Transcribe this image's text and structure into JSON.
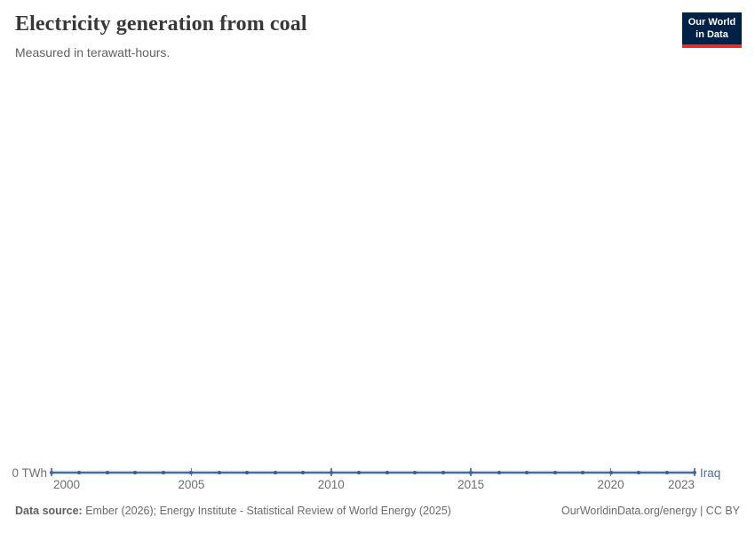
{
  "header": {
    "title": "Electricity generation from coal",
    "subtitle": "Measured in terawatt-hours.",
    "logo": {
      "line1": "Our World",
      "line2": "in Data"
    }
  },
  "chart_data": {
    "type": "line",
    "title": "Electricity generation from coal",
    "subtitle": "Measured in terawatt-hours.",
    "unit": "terawatt-hours",
    "entity_label": "Iraq",
    "x": [
      2000,
      2001,
      2002,
      2003,
      2004,
      2005,
      2006,
      2007,
      2008,
      2009,
      2010,
      2011,
      2012,
      2013,
      2014,
      2015,
      2016,
      2017,
      2018,
      2019,
      2020,
      2021,
      2022,
      2023
    ],
    "series": [
      {
        "name": "Iraq",
        "values": [
          0,
          0,
          0,
          0,
          0,
          0,
          0,
          0,
          0,
          0,
          0,
          0,
          0,
          0,
          0,
          0,
          0,
          0,
          0,
          0,
          0,
          0,
          0,
          0
        ]
      }
    ],
    "x_tick_years": [
      2000,
      2005,
      2010,
      2015,
      2020,
      2023
    ],
    "x_tick_labels": [
      "2000",
      "2005",
      "2010",
      "2015",
      "2020",
      "2023"
    ],
    "y_zero_label": "0 TWh",
    "xlim": [
      2000,
      2023
    ],
    "ylim": [
      0,
      0
    ],
    "grid": false,
    "legend_position": "end-of-line"
  },
  "footer": {
    "source_label": "Data source:",
    "source_text": " Ember (2026); Energy Institute - Statistical Review of World Energy (2025)",
    "credit": "OurWorldinData.org/energy | CC BY"
  },
  "colors": {
    "line": "#4c6a9c",
    "dot": "#3d5c8f",
    "logo_bg": "#002147",
    "logo_accent": "#d8352b"
  }
}
